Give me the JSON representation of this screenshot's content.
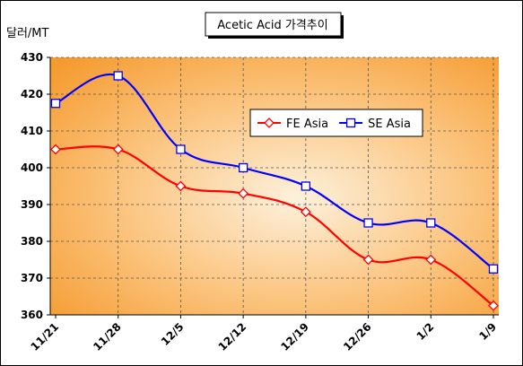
{
  "chart_data": {
    "type": "line",
    "title": "Acetic Acid 가격추이",
    "ylabel": "달러/MT",
    "xlabel": "",
    "categories": [
      "11/21",
      "11/28",
      "12/5",
      "12/12",
      "12/19",
      "12/26",
      "1/2",
      "1/9"
    ],
    "ylim": [
      360,
      430
    ],
    "yticks": [
      360,
      370,
      380,
      390,
      400,
      410,
      420,
      430
    ],
    "grid": true,
    "legend_position": "top-right",
    "series": [
      {
        "name": "FE Asia",
        "values": [
          405,
          405,
          395,
          393,
          388,
          375,
          375,
          362.5
        ],
        "color": "#ff0000",
        "marker": "diamond"
      },
      {
        "name": "SE Asia",
        "values": [
          417.5,
          425,
          405,
          400,
          395,
          385,
          385,
          372.5
        ],
        "color": "#0000ff",
        "marker": "square"
      }
    ],
    "colors": {
      "plot_bg_center": "#fdf0d8",
      "plot_bg_edge": "#f7a23a"
    }
  }
}
